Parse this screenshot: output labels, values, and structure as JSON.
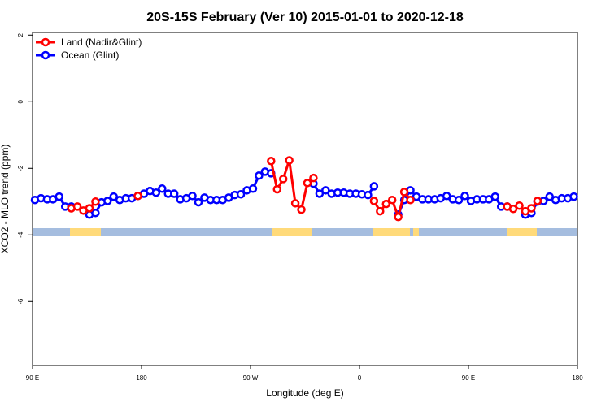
{
  "chart_data": {
    "type": "line",
    "title": "20S-15S February (Ver 10)   2015-01-01 to 2020-12-18",
    "x_label": "Longitude (deg E)",
    "y_label": "XCO2 - MLO trend (ppm)",
    "x": [
      92,
      97,
      102,
      107,
      112,
      117,
      122,
      127,
      132,
      137,
      142,
      147,
      152,
      157,
      162,
      167,
      172,
      177,
      182,
      187,
      192,
      197,
      202,
      207,
      212,
      217,
      222,
      227,
      232,
      237,
      242,
      247,
      252,
      257,
      262,
      267,
      272,
      277,
      282,
      287,
      292,
      297,
      302,
      307,
      312,
      317,
      322,
      327,
      332,
      337,
      342,
      347,
      352,
      357,
      362,
      367,
      372,
      377,
      382,
      387,
      392,
      397,
      402,
      407,
      412,
      417,
      422,
      427,
      432,
      437,
      442,
      447,
      452,
      457,
      462,
      467,
      472,
      477,
      482,
      487,
      492,
      497,
      502,
      507,
      512,
      517,
      522,
      527,
      532,
      537
    ],
    "series": [
      {
        "name": "Ocean (Glint)",
        "color": "#0000ff",
        "values": [
          -2.95,
          -2.9,
          -2.93,
          -2.93,
          -2.85,
          -3.15,
          -3.15,
          null,
          null,
          -3.39,
          -3.34,
          -3.02,
          -2.98,
          -2.85,
          -2.95,
          -2.9,
          -2.9,
          -2.83,
          -2.76,
          -2.68,
          -2.73,
          -2.61,
          -2.76,
          -2.76,
          -2.93,
          -2.9,
          -2.83,
          -3.02,
          -2.88,
          -2.95,
          -2.95,
          -2.95,
          -2.88,
          -2.8,
          -2.78,
          -2.66,
          -2.61,
          -2.22,
          -2.1,
          -2.15,
          null,
          null,
          null,
          null,
          null,
          null,
          -2.46,
          -2.76,
          -2.66,
          -2.76,
          -2.73,
          -2.73,
          -2.76,
          -2.76,
          -2.78,
          -2.8,
          -2.54,
          null,
          null,
          null,
          -3.39,
          -2.95,
          -2.66,
          -2.85,
          -2.93,
          -2.93,
          -2.93,
          -2.9,
          -2.83,
          -2.93,
          -2.95,
          -2.83,
          -2.98,
          -2.93,
          -2.93,
          -2.93,
          -2.85,
          -3.15,
          -3.15,
          null,
          null,
          -3.39,
          -3.34,
          -3.0,
          -2.98,
          -2.85,
          -2.95,
          -2.9,
          -2.9,
          -2.85
        ]
      },
      {
        "name": "Land (Nadir&Glint)",
        "color": "#ff0000",
        "values": [
          null,
          null,
          null,
          null,
          null,
          null,
          -3.2,
          -3.15,
          -3.27,
          -3.2,
          -3.0,
          null,
          null,
          null,
          null,
          null,
          null,
          -2.83,
          null,
          null,
          null,
          null,
          null,
          null,
          null,
          null,
          null,
          null,
          null,
          null,
          null,
          null,
          null,
          null,
          null,
          null,
          null,
          null,
          null,
          -1.78,
          -2.63,
          -2.32,
          -1.76,
          -3.05,
          -3.24,
          -2.44,
          -2.29,
          null,
          null,
          null,
          null,
          null,
          null,
          null,
          null,
          null,
          -2.98,
          -3.29,
          -3.07,
          -2.95,
          -3.46,
          -2.71,
          -2.95,
          null,
          null,
          null,
          null,
          null,
          null,
          null,
          null,
          null,
          null,
          null,
          null,
          null,
          null,
          null,
          -3.15,
          -3.22,
          -3.12,
          -3.29,
          -3.2,
          -2.98,
          null,
          null,
          null,
          null,
          null,
          null
        ]
      }
    ],
    "xlim": [
      90,
      540
    ],
    "ylim": [
      -7.92,
      2.08
    ],
    "xticks": [
      {
        "value": 90,
        "label": "90 E"
      },
      180,
      {
        "value": 270,
        "label": "90 W"
      },
      {
        "value": 360,
        "label": "0"
      },
      {
        "value": 450,
        "label": "90 E"
      },
      {
        "value": 540,
        "label": "180"
      }
    ],
    "yticks": [
      2,
      0,
      -2,
      -4,
      -6
    ],
    "legend_order": [
      1,
      0
    ]
  }
}
